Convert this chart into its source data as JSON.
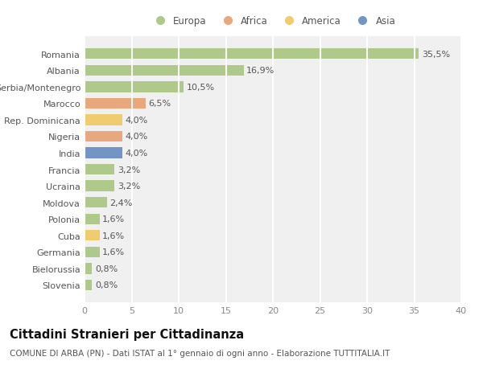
{
  "countries": [
    "Romania",
    "Albania",
    "Serbia/Montenegro",
    "Marocco",
    "Rep. Dominicana",
    "Nigeria",
    "India",
    "Francia",
    "Ucraina",
    "Moldova",
    "Polonia",
    "Cuba",
    "Germania",
    "Bielorussia",
    "Slovenia"
  ],
  "values": [
    35.5,
    16.9,
    10.5,
    6.5,
    4.0,
    4.0,
    4.0,
    3.2,
    3.2,
    2.4,
    1.6,
    1.6,
    1.6,
    0.8,
    0.8
  ],
  "labels": [
    "35,5%",
    "16,9%",
    "10,5%",
    "6,5%",
    "4,0%",
    "4,0%",
    "4,0%",
    "3,2%",
    "3,2%",
    "2,4%",
    "1,6%",
    "1,6%",
    "1,6%",
    "0,8%",
    "0,8%"
  ],
  "continents": [
    "Europa",
    "Europa",
    "Europa",
    "Africa",
    "America",
    "Africa",
    "Asia",
    "Europa",
    "Europa",
    "Europa",
    "Europa",
    "America",
    "Europa",
    "Europa",
    "Europa"
  ],
  "colors": {
    "Europa": "#aec98a",
    "Africa": "#e8a87c",
    "America": "#f0cc6e",
    "Asia": "#7395c4"
  },
  "legend_order": [
    "Europa",
    "Africa",
    "America",
    "Asia"
  ],
  "xlim": [
    0,
    40
  ],
  "xticks": [
    0,
    5,
    10,
    15,
    20,
    25,
    30,
    35,
    40
  ],
  "title": "Cittadini Stranieri per Cittadinanza",
  "subtitle": "COMUNE DI ARBA (PN) - Dati ISTAT al 1° gennaio di ogni anno - Elaborazione TUTTITALIA.IT",
  "bg_color": "#ffffff",
  "plot_bg_color": "#f0f0f0",
  "grid_color": "#ffffff",
  "label_fontsize": 8.0,
  "tick_fontsize": 8.0,
  "title_fontsize": 10.5,
  "subtitle_fontsize": 7.5,
  "bar_height": 0.65
}
